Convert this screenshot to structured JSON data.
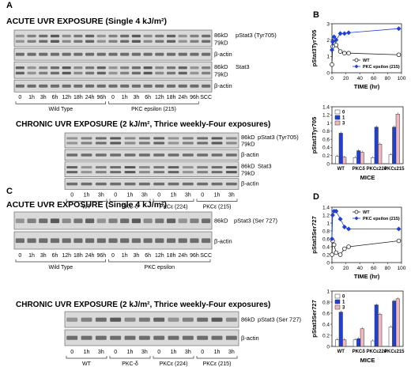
{
  "panels": {
    "A": "A",
    "B": "B",
    "C": "C",
    "D": "D"
  },
  "A": {
    "acute_title": "ACUTE UVR EXPOSURE (Single 4 kJ/m²)",
    "chronic_title": "CHRONIC UVR EXPOSURE (2 kJ/m², Thrice weekly-Four exposures)",
    "acute_blots": [
      {
        "labels": [
          "86kD",
          "79kD"
        ],
        "name": "pStat3 (Tyr705)"
      },
      {
        "labels": [],
        "name": "β-actin"
      },
      {
        "labels": [
          "86kD",
          "79kD"
        ],
        "name": "Stat3"
      },
      {
        "labels": [],
        "name": "β-actin"
      }
    ],
    "acute_lanes": [
      "0",
      "1h",
      "3h",
      "6h",
      "12h",
      "18h",
      "24h",
      "96h",
      "0",
      "1h",
      "3h",
      "6h",
      "12h",
      "18h",
      "24h",
      "96h",
      "SCC"
    ],
    "acute_groups": [
      "Wild Type",
      "PKC epsilon (215)"
    ],
    "chronic_blots": [
      {
        "labels": [
          "86kD",
          "79kD"
        ],
        "name": "pStat3 (Tyr705)"
      },
      {
        "labels": [],
        "name": "β-actin"
      },
      {
        "labels": [
          "86kD",
          "79kD"
        ],
        "name": "Stat3"
      },
      {
        "labels": [],
        "name": "β-actin"
      }
    ],
    "chronic_lanes": [
      "0",
      "1h",
      "3h",
      "0",
      "1h",
      "3h",
      "0",
      "1h",
      "3h",
      "0",
      "1h",
      "3h"
    ],
    "chronic_groups": [
      "WT",
      "PKC-δ",
      "PKCε (224)",
      "PKCε (215)"
    ]
  },
  "C": {
    "acute_title": "ACUTE UVR EXPOSURE (Single 4 kJ/m²)",
    "chronic_title": "CHRONIC UVR EXPOSURE (2 kJ/m², Thrice weekly-Four exposures)",
    "acute_blots": [
      {
        "labels": [
          "86kD"
        ],
        "name": "pStat3 (Ser 727)"
      },
      {
        "labels": [],
        "name": "β-actin"
      }
    ],
    "acute_lanes": [
      "0",
      "1h",
      "3h",
      "6h",
      "12h",
      "18h",
      "24h",
      "96h",
      "0",
      "1h",
      "3h",
      "6h",
      "12h",
      "18h",
      "24h",
      "96h",
      "SCC"
    ],
    "acute_groups": [
      "Wild Type",
      "PKC epsilon"
    ],
    "chronic_blots": [
      {
        "labels": [
          "86kD"
        ],
        "name": "pStat3 (Ser 727)"
      },
      {
        "labels": [],
        "name": "β-actin"
      }
    ],
    "chronic_lanes": [
      "0",
      "1h",
      "3h",
      "0",
      "1h",
      "3h",
      "0",
      "1h",
      "3h",
      "0",
      "1h",
      "3h"
    ],
    "chronic_groups": [
      "WT",
      "PKC-δ",
      "PKCε (224)",
      "PKCε (215)"
    ]
  },
  "chart_data": [
    {
      "type": "line",
      "panel": "B",
      "ylabel": "pStat3Tyr705",
      "xlabel": "TIME (hr)",
      "xlim": [
        0,
        100
      ],
      "ylim": [
        0,
        3
      ],
      "xticks": [
        0,
        20,
        40,
        60,
        80,
        100
      ],
      "yticks": [
        0,
        1,
        2,
        3
      ],
      "legend_position": "bottom-right",
      "series": [
        {
          "name": "WT",
          "marker": "open-circle",
          "color": "#222222",
          "x": [
            0,
            1,
            3,
            6,
            12,
            18,
            24,
            96
          ],
          "y": [
            0.5,
            1.6,
            2.1,
            1.7,
            1.3,
            1.2,
            1.2,
            1.1
          ]
        },
        {
          "name": "PKC epsilon (215)",
          "marker": "filled-diamond",
          "color": "#1f3fd6",
          "x": [
            0,
            1,
            3,
            6,
            12,
            18,
            24,
            96
          ],
          "y": [
            1.4,
            1.9,
            2.2,
            2.0,
            2.4,
            2.4,
            2.45,
            2.7
          ]
        }
      ]
    },
    {
      "type": "bar",
      "panel": "B-lower",
      "ylabel": "pStat3Tyr705",
      "xlabel": "MICE",
      "ylim": [
        0,
        1.4
      ],
      "yticks": [
        0,
        0.2,
        0.4,
        0.6,
        0.8,
        1.0,
        1.2,
        1.4
      ],
      "legend_position": "top-left",
      "categories": [
        "WT",
        "PKCδ",
        "PKCε224",
        "PKCε215"
      ],
      "series": [
        {
          "name": "0",
          "color": "#ffffff",
          "values": [
            0.18,
            0.15,
            0.15,
            0.22
          ]
        },
        {
          "name": "1",
          "color": "#1f3fd6",
          "values": [
            0.75,
            0.32,
            0.9,
            0.9
          ]
        },
        {
          "name": "3",
          "color": "#f2b8c0",
          "values": [
            0.16,
            0.28,
            0.48,
            1.22
          ]
        }
      ]
    },
    {
      "type": "line",
      "panel": "D",
      "ylabel": "pStat3Ser727",
      "xlabel": "TIME (hr)",
      "xlim": [
        0,
        100
      ],
      "ylim": [
        0,
        1.4
      ],
      "xticks": [
        0,
        20,
        40,
        60,
        80,
        100
      ],
      "yticks": [
        0,
        0.2,
        0.4,
        0.6,
        0.8,
        1.0,
        1.2,
        1.4
      ],
      "legend_position": "top-right",
      "series": [
        {
          "name": "WT",
          "marker": "open-circle",
          "color": "#222222",
          "x": [
            0,
            1,
            3,
            6,
            12,
            18,
            24,
            96
          ],
          "y": [
            0.2,
            0.55,
            0.45,
            0.25,
            0.2,
            0.35,
            0.4,
            0.55
          ]
        },
        {
          "name": "PKC epsilon (215)",
          "marker": "filled-diamond",
          "color": "#1f3fd6",
          "x": [
            0,
            1,
            3,
            6,
            12,
            18,
            24,
            96
          ],
          "y": [
            0.6,
            1.2,
            1.3,
            1.3,
            1.1,
            0.9,
            0.85,
            0.85
          ]
        }
      ]
    },
    {
      "type": "bar",
      "panel": "D-lower",
      "ylabel": "pStat3Ser727",
      "xlabel": "MICE",
      "ylim": [
        0,
        1.0
      ],
      "yticks": [
        0,
        0.2,
        0.4,
        0.6,
        0.8,
        1.0
      ],
      "legend_position": "top-left",
      "categories": [
        "WT",
        "PKCδ",
        "PKCε224",
        "PKCε215"
      ],
      "series": [
        {
          "name": "0",
          "color": "#ffffff",
          "values": [
            0.12,
            0.12,
            0.1,
            0.35
          ]
        },
        {
          "name": "1",
          "color": "#1f3fd6",
          "values": [
            0.62,
            0.14,
            0.75,
            0.82
          ]
        },
        {
          "name": "3",
          "color": "#f2b8c0",
          "values": [
            0.12,
            0.32,
            0.58,
            0.86
          ]
        }
      ]
    }
  ]
}
